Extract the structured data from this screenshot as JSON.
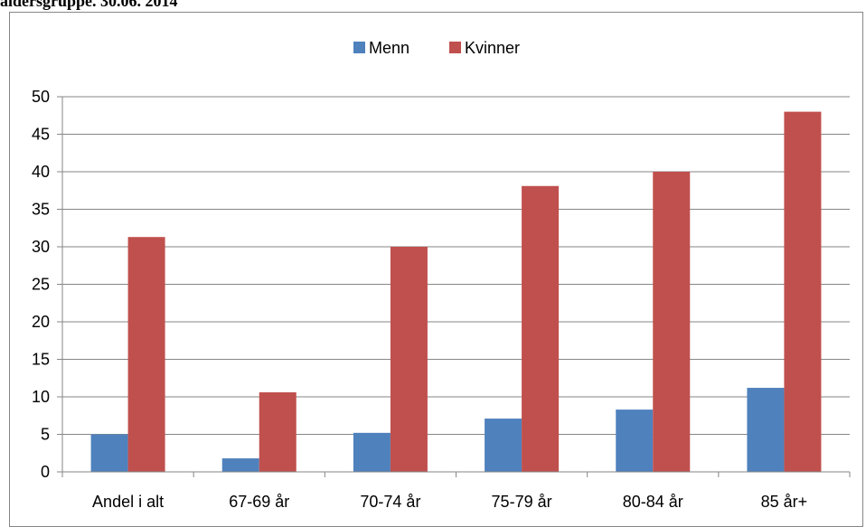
{
  "page": {
    "title": "aldersgruppe. 30.06. 2014"
  },
  "chart_data": {
    "type": "bar",
    "title": "",
    "xlabel": "",
    "ylabel": "",
    "categories": [
      "Andel i alt",
      "67-69 år",
      "70-74 år",
      "75-79 år",
      "80-84 år",
      "85 år+"
    ],
    "series": [
      {
        "name": "Menn",
        "color": "#4F81BD",
        "values": [
          5.0,
          1.8,
          5.2,
          7.1,
          8.3,
          11.2
        ]
      },
      {
        "name": "Kvinner",
        "color": "#C0504D",
        "values": [
          31.3,
          10.6,
          30.0,
          38.1,
          40.0,
          48.0
        ]
      }
    ],
    "ylim": [
      0,
      50
    ],
    "yticks": [
      0,
      5,
      10,
      15,
      20,
      25,
      30,
      35,
      40,
      45,
      50
    ],
    "grid": true,
    "legend_position": "top"
  }
}
